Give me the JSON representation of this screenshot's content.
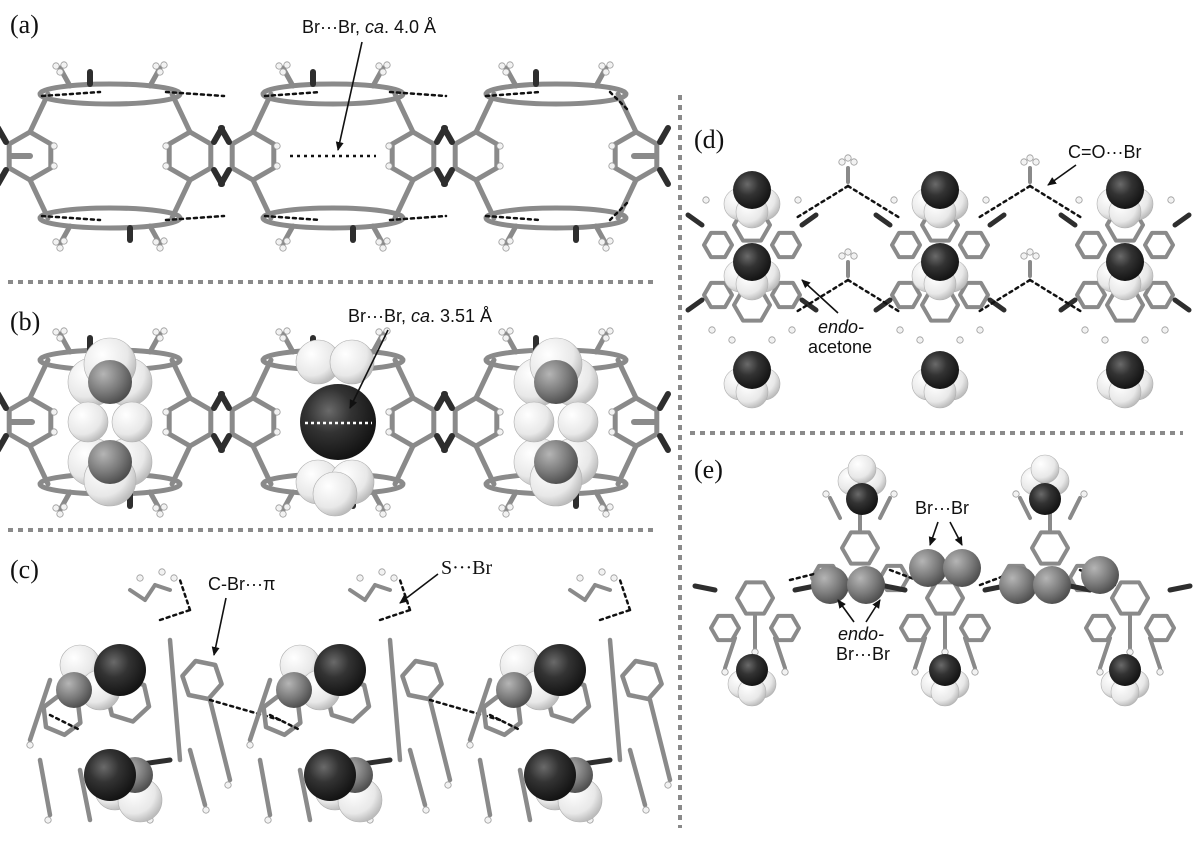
{
  "colors": {
    "bond": "#8a8a8a",
    "bond_dark": "#2e2e2e",
    "hydrogen": "#f2f2f2",
    "bromine_sphere": "#2b2b2b",
    "grey_sphere": "#6e6e6e",
    "separator": "#8a8a8a",
    "contact": "#111111"
  },
  "panels": [
    {
      "id": "a",
      "label": "(a)",
      "annotation": {
        "prefix": "Br···Br, ",
        "italic": "ca",
        "suffix": ". 4.0 Å"
      }
    },
    {
      "id": "b",
      "label": "(b)",
      "annotation": {
        "prefix": "Br···Br, ",
        "italic": "ca",
        "suffix": ". 3.51 Å"
      }
    },
    {
      "id": "c",
      "label": "(c)",
      "annotations": [
        "C-Br···π",
        "S···Br"
      ]
    },
    {
      "id": "d",
      "label": "(d)",
      "annotations": {
        "contact": "C=O···Br",
        "guest_line1": "endo-",
        "guest_line2": "acetone"
      }
    },
    {
      "id": "e",
      "label": "(e)",
      "annotations": {
        "contact": "Br···Br",
        "guest_line1": "endo-",
        "guest_line2": "Br···Br"
      }
    }
  ]
}
